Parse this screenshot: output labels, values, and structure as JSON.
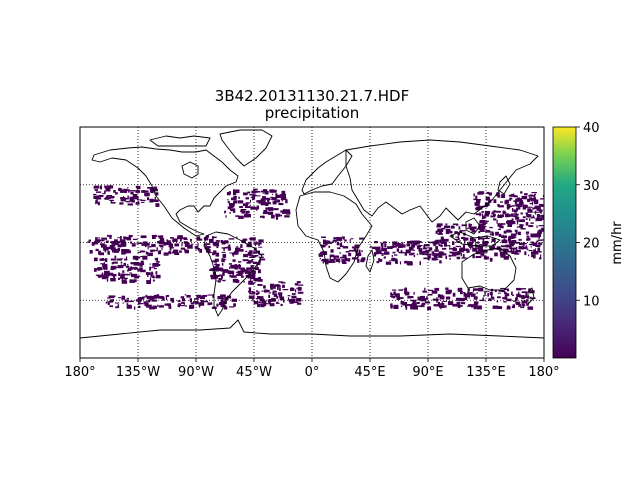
{
  "title_line1": "3B42.20131130.21.7.HDF",
  "title_line2": "precipitation",
  "colorbar": {
    "label": "mm/hr",
    "colormap": "viridis",
    "min": 0,
    "max": 40,
    "ticks": [
      {
        "value": 10,
        "label": "10"
      },
      {
        "value": 20,
        "label": "20"
      },
      {
        "value": 30,
        "label": "30"
      },
      {
        "value": 40,
        "label": "40"
      }
    ]
  },
  "map": {
    "projection": "cylindrical",
    "lon_range": [
      -180,
      180
    ],
    "lat_range": [
      -90,
      90
    ],
    "graticule_lons": [
      -135,
      -90,
      -45,
      0,
      45,
      90,
      135
    ],
    "graticule_lats": [
      -45,
      0,
      45
    ],
    "lon_tick_labels": [
      {
        "lon": -180,
        "label": "180°"
      },
      {
        "lon": -135,
        "label": "135°W"
      },
      {
        "lon": -90,
        "label": "90°W"
      },
      {
        "lon": -45,
        "label": "45°W"
      },
      {
        "lon": 0,
        "label": "0°"
      },
      {
        "lon": 45,
        "label": "45°E"
      },
      {
        "lon": 90,
        "label": "90°E"
      },
      {
        "lon": 135,
        "label": "135°E"
      },
      {
        "lon": 180,
        "label": "180°"
      }
    ],
    "precip_color": "#440154",
    "precip_regions": [
      {
        "name": "pacific-itcz",
        "lon": [
          -175,
          -80
        ],
        "lat": [
          -8,
          6
        ]
      },
      {
        "name": "pacific-north-storm",
        "lon": [
          -170,
          -120
        ],
        "lat": [
          30,
          45
        ]
      },
      {
        "name": "atlantic-north-storm",
        "lon": [
          -70,
          -20
        ],
        "lat": [
          20,
          42
        ]
      },
      {
        "name": "spcz",
        "lon": [
          -170,
          -120
        ],
        "lat": [
          -30,
          -10
        ]
      },
      {
        "name": "south-america",
        "lon": [
          -80,
          -40
        ],
        "lat": [
          -30,
          5
        ]
      },
      {
        "name": "south-atlantic",
        "lon": [
          -50,
          -10
        ],
        "lat": [
          -48,
          -30
        ]
      },
      {
        "name": "africa-equatorial",
        "lon": [
          5,
          40
        ],
        "lat": [
          -15,
          5
        ]
      },
      {
        "name": "indian-ocean",
        "lon": [
          45,
          100
        ],
        "lat": [
          -15,
          2
        ]
      },
      {
        "name": "maritime-continent",
        "lon": [
          95,
          180
        ],
        "lat": [
          -12,
          15
        ]
      },
      {
        "name": "west-pacific-north",
        "lon": [
          125,
          180
        ],
        "lat": [
          15,
          40
        ]
      },
      {
        "name": "southern-ocean",
        "lon": [
          60,
          170
        ],
        "lat": [
          -50,
          -35
        ]
      },
      {
        "name": "southern-ocean-west",
        "lon": [
          -160,
          -60
        ],
        "lat": [
          -50,
          -40
        ]
      }
    ]
  }
}
